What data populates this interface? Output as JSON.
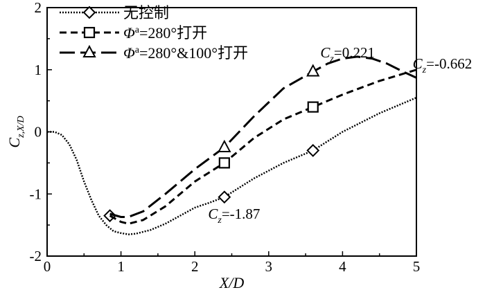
{
  "chart_data": {
    "type": "line",
    "xlabel": "X/D",
    "ylabel": "C_{z,X/D}",
    "xlim": [
      0,
      5
    ],
    "ylim": [
      -2,
      2
    ],
    "x_ticks": [
      0,
      1,
      2,
      3,
      4,
      5
    ],
    "y_ticks": [
      -2,
      -1,
      0,
      1,
      2
    ],
    "x_tick_labels": [
      "0",
      "1",
      "2",
      "3",
      "4",
      "5"
    ],
    "y_tick_labels": [
      "-2",
      "-1",
      "0",
      "1",
      "2"
    ],
    "grid": false,
    "legend_position": "top-left",
    "series": [
      {
        "name": "无控制",
        "line_style": "dotted",
        "marker": "diamond",
        "color": "#000000",
        "x": [
          0,
          0.1,
          0.2,
          0.3,
          0.4,
          0.5,
          0.6,
          0.7,
          0.8,
          0.9,
          1.0,
          1.1,
          1.2,
          1.4,
          1.6,
          1.8,
          2.0,
          2.2,
          2.4,
          2.8,
          3.2,
          3.6,
          4.0,
          4.5,
          5.0
        ],
        "y": [
          0,
          0,
          -0.05,
          -0.2,
          -0.45,
          -0.8,
          -1.1,
          -1.35,
          -1.5,
          -1.6,
          -1.63,
          -1.65,
          -1.64,
          -1.58,
          -1.48,
          -1.35,
          -1.22,
          -1.14,
          -1.05,
          -0.75,
          -0.5,
          -0.3,
          0,
          0.3,
          0.55
        ],
        "markers": [
          {
            "x": 0.85,
            "y": -1.35
          },
          {
            "x": 2.4,
            "y": -1.05
          },
          {
            "x": 3.6,
            "y": -0.3
          }
        ]
      },
      {
        "name": "Φ_a=280°打开",
        "line_style": "dashed",
        "marker": "square",
        "color": "#000000",
        "x": [
          0.85,
          1.0,
          1.1,
          1.3,
          1.6,
          2.0,
          2.4,
          2.8,
          3.2,
          3.6,
          4.0,
          4.5,
          5.0
        ],
        "y": [
          -1.35,
          -1.45,
          -1.48,
          -1.42,
          -1.2,
          -0.8,
          -0.5,
          -0.1,
          0.2,
          0.4,
          0.6,
          0.82,
          1.0
        ],
        "markers": [
          {
            "x": 2.4,
            "y": -0.5
          },
          {
            "x": 3.6,
            "y": 0.4
          }
        ]
      },
      {
        "name": "Φ_a=280°&100°打开",
        "line_style": "long-dashed",
        "marker": "triangle",
        "color": "#000000",
        "x": [
          0.85,
          1.0,
          1.1,
          1.3,
          1.6,
          2.0,
          2.4,
          2.8,
          3.2,
          3.6,
          3.8,
          4.0,
          4.2,
          4.4,
          4.6,
          4.8,
          5.0
        ],
        "y": [
          -1.32,
          -1.37,
          -1.37,
          -1.28,
          -1.0,
          -0.6,
          -0.25,
          0.25,
          0.7,
          0.97,
          1.1,
          1.18,
          1.21,
          1.18,
          1.1,
          0.98,
          0.87
        ],
        "markers": [
          {
            "x": 2.4,
            "y": -0.25
          },
          {
            "x": 3.6,
            "y": 0.97
          }
        ]
      }
    ],
    "annotations": [
      {
        "label_sym": "C",
        "label_sub": "z",
        "value": "=0.221",
        "x": 3.7,
        "y": 1.2
      },
      {
        "label_sym": "C",
        "label_sub": "z",
        "value": "=-0.662",
        "x": 4.95,
        "y": 1.02
      },
      {
        "label_sym": "C",
        "label_sub": "z",
        "value": "=-1.87",
        "x": 2.18,
        "y": -1.4
      }
    ]
  }
}
